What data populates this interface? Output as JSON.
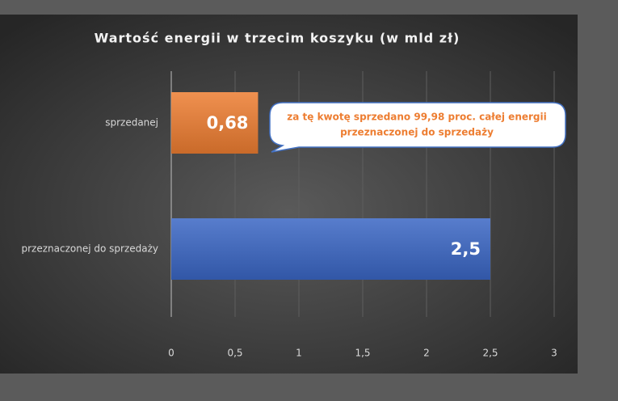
{
  "chart_data": {
    "type": "bar",
    "orientation": "horizontal",
    "title": "Wartość energii w trzecim koszyku (w mld zł)",
    "categories": [
      "sprzedanej",
      "przeznaczonej do sprzedaży"
    ],
    "values": [
      0.68,
      2.5
    ],
    "value_labels": [
      "0,68",
      "2,5"
    ],
    "colors": [
      "#ed7d31",
      "#3a66c4"
    ],
    "xlim": [
      0,
      3
    ],
    "xticks": [
      0,
      {
        "value": 0.5,
        "label": "0,5"
      },
      1,
      {
        "value": 1.5,
        "label": "1,5"
      },
      2,
      {
        "value": 2.5,
        "label": "2,5"
      },
      3
    ],
    "grid": true,
    "annotation": [
      "za tę kwotę sprzedano 99,98 proc. całej energii",
      "przeznaczonej do sprzedaży"
    ]
  }
}
